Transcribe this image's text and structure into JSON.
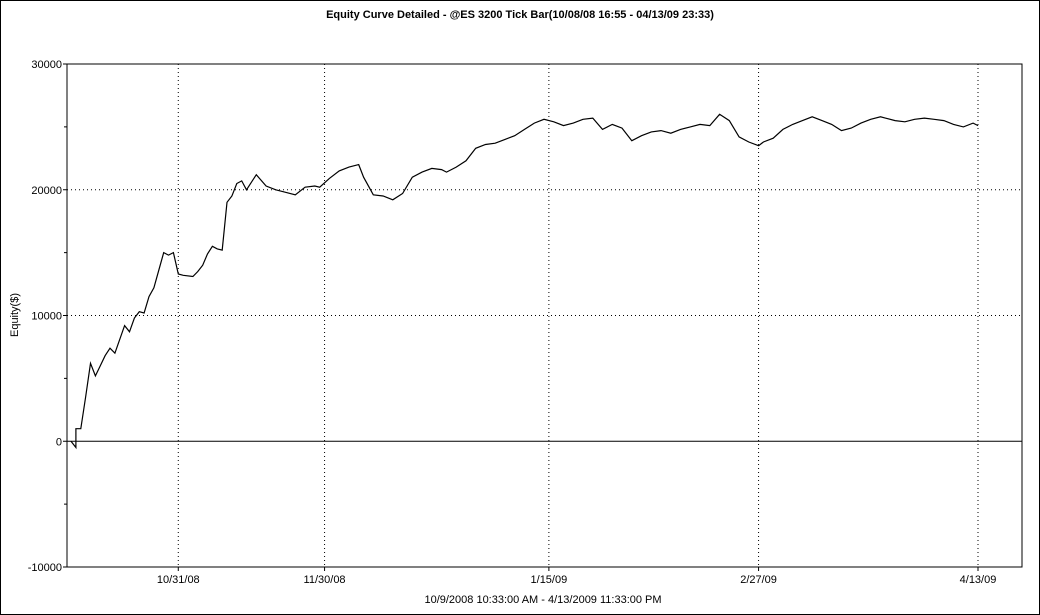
{
  "chart_data": {
    "type": "line",
    "title": "Equity Curve Detailed - @ES 3200 Tick Bar(10/08/08 16:55 - 04/13/09 23:33)",
    "xlabel": "10/9/2008 10:33:00 AM - 4/13/2009 11:33:00 PM",
    "ylabel": "Equity($)",
    "ylim": [
      -10000,
      30000
    ],
    "yticks": [
      -10000,
      0,
      10000,
      20000,
      30000
    ],
    "ytick_labels": [
      "-10000",
      "0",
      "10000",
      "20000",
      "30000"
    ],
    "xlim": [
      "2008-10-09",
      "2009-04-13"
    ],
    "xticks": [
      "2008-10-31",
      "2008-11-30",
      "2009-01-15",
      "2009-02-27",
      "2009-04-13"
    ],
    "xtick_labels": [
      "10/31/08",
      "11/30/08",
      "1/15/09",
      "2/27/09",
      "4/13/09"
    ],
    "grid": "dotted",
    "zero_line": true,
    "series": [
      {
        "x": [
          "2008-10-09",
          "2008-10-10",
          "2008-10-10",
          "2008-10-11",
          "2008-10-12",
          "2008-10-13",
          "2008-10-14",
          "2008-10-15",
          "2008-10-16",
          "2008-10-17",
          "2008-10-18",
          "2008-10-20",
          "2008-10-21",
          "2008-10-22",
          "2008-10-23",
          "2008-10-24",
          "2008-10-25",
          "2008-10-26",
          "2008-10-27",
          "2008-10-28",
          "2008-10-29",
          "2008-10-30",
          "2008-10-31",
          "2008-11-01",
          "2008-11-03",
          "2008-11-04",
          "2008-11-05",
          "2008-11-06",
          "2008-11-07",
          "2008-11-08",
          "2008-11-09",
          "2008-11-10",
          "2008-11-11",
          "2008-11-12",
          "2008-11-13",
          "2008-11-14",
          "2008-11-16",
          "2008-11-18",
          "2008-11-20",
          "2008-11-22",
          "2008-11-24",
          "2008-11-26",
          "2008-11-28",
          "2008-11-29",
          "2008-12-01",
          "2008-12-03",
          "2008-12-05",
          "2008-12-07",
          "2008-12-08",
          "2008-12-10",
          "2008-12-12",
          "2008-12-14",
          "2008-12-16",
          "2008-12-18",
          "2008-12-20",
          "2008-12-22",
          "2008-12-24",
          "2008-12-25",
          "2008-12-27",
          "2008-12-29",
          "2008-12-31",
          "2009-01-02",
          "2009-01-04",
          "2009-01-06",
          "2009-01-08",
          "2009-01-10",
          "2009-01-12",
          "2009-01-14",
          "2009-01-16",
          "2009-01-18",
          "2009-01-20",
          "2009-01-22",
          "2009-01-24",
          "2009-01-26",
          "2009-01-28",
          "2009-01-30",
          "2009-02-01",
          "2009-02-03",
          "2009-02-05",
          "2009-02-07",
          "2009-02-09",
          "2009-02-11",
          "2009-02-13",
          "2009-02-15",
          "2009-02-17",
          "2009-02-19",
          "2009-02-21",
          "2009-02-23",
          "2009-02-25",
          "2009-02-27",
          "2009-02-28",
          "2009-03-02",
          "2009-03-04",
          "2009-03-06",
          "2009-03-08",
          "2009-03-10",
          "2009-03-12",
          "2009-03-14",
          "2009-03-16",
          "2009-03-18",
          "2009-03-20",
          "2009-03-22",
          "2009-03-24",
          "2009-03-25",
          "2009-03-27",
          "2009-03-29",
          "2009-03-31",
          "2009-04-02",
          "2009-04-04",
          "2009-04-06",
          "2009-04-08",
          "2009-04-10",
          "2009-04-12",
          "2009-04-13"
        ],
        "y": [
          0,
          -500,
          1000,
          1000,
          3500,
          6200,
          5200,
          6000,
          6800,
          7400,
          7000,
          9200,
          8700,
          9800,
          10300,
          10200,
          11500,
          12200,
          13600,
          15000,
          14800,
          15000,
          13300,
          13200,
          13100,
          13500,
          14000,
          14900,
          15500,
          15300,
          15200,
          19000,
          19500,
          20500,
          20700,
          20000,
          21200,
          20300,
          20000,
          19800,
          19600,
          20200,
          20300,
          20200,
          20900,
          21500,
          21800,
          22000,
          21000,
          19600,
          19500,
          19200,
          19700,
          21000,
          21400,
          21700,
          21600,
          21400,
          21800,
          22300,
          23300,
          23600,
          23700,
          24000,
          24300,
          24800,
          25300,
          25600,
          25400,
          25100,
          25300,
          25600,
          25700,
          24800,
          25200,
          24900,
          23900,
          24300,
          24600,
          24700,
          24500,
          24800,
          25000,
          25200,
          25100,
          26000,
          25500,
          24200,
          23800,
          23500,
          23800,
          24100,
          24800,
          25200,
          25500,
          25800,
          25500,
          25200,
          24700,
          24900,
          25300,
          25600,
          25800,
          25700,
          25500,
          25400,
          25600,
          25700,
          25600,
          25500,
          25200,
          25000,
          25300,
          25100
        ]
      }
    ]
  }
}
